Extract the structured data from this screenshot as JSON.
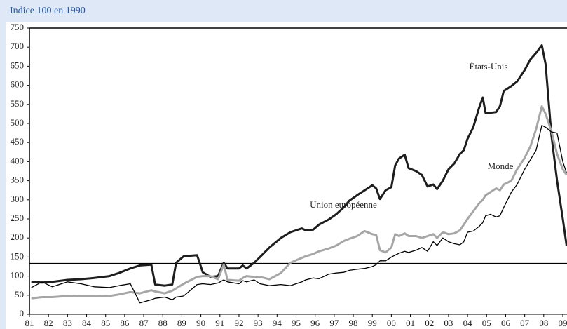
{
  "chart_data": {
    "type": "line",
    "title": "Indice 100 en 1990",
    "x": [
      1981.1,
      1981.66,
      1982.2,
      1983.0,
      1983.7,
      1984.4,
      1985.2,
      1985.7,
      1986.3,
      1986.8,
      1987.4,
      1987.6,
      1988.1,
      1988.5,
      1988.7,
      1989.1,
      1989.8,
      1990.1,
      1990.5,
      1990.9,
      1991.2,
      1991.4,
      1992.0,
      1992.2,
      1992.4,
      1992.8,
      1993.1,
      1993.6,
      1994.2,
      1994.7,
      1995.3,
      1995.5,
      1995.9,
      1996.2,
      1996.7,
      1997.1,
      1997.5,
      1997.8,
      1998.2,
      1998.6,
      1999.0,
      1999.2,
      1999.4,
      1999.7,
      2000.0,
      2000.2,
      2000.4,
      2000.7,
      2000.9,
      2001.3,
      2001.6,
      2001.9,
      2002.2,
      2002.4,
      2002.7,
      2003.0,
      2003.3,
      2003.6,
      2003.8,
      2004.0,
      2004.3,
      2004.6,
      2004.8,
      2004.95,
      2005.2,
      2005.5,
      2005.7,
      2005.9,
      2006.3,
      2006.6,
      2007.0,
      2007.3,
      2007.6,
      2007.9,
      2008.1,
      2008.4,
      2008.7,
      2009.0,
      2009.2
    ],
    "series": [
      {
        "name": "États-Unis",
        "color": "#1e1e1e",
        "line_width": 3,
        "values": [
          85,
          83,
          85,
          90,
          92,
          95,
          100,
          108,
          120,
          128,
          130,
          78,
          75,
          78,
          135,
          152,
          155,
          110,
          98,
          100,
          135,
          120,
          120,
          128,
          120,
          135,
          150,
          175,
          200,
          215,
          225,
          220,
          222,
          235,
          248,
          262,
          280,
          298,
          312,
          325,
          338,
          330,
          302,
          325,
          333,
          390,
          408,
          418,
          383,
          375,
          365,
          335,
          340,
          328,
          350,
          380,
          395,
          420,
          430,
          460,
          490,
          540,
          568,
          527,
          528,
          530,
          545,
          585,
          598,
          610,
          640,
          668,
          685,
          705,
          655,
          470,
          350,
          250,
          180
        ]
      },
      {
        "name": "Monde",
        "color": "#a6a6a6",
        "line_width": 3,
        "values": [
          42,
          45,
          45,
          48,
          47,
          47,
          48,
          52,
          58,
          55,
          63,
          60,
          55,
          62,
          68,
          80,
          98,
          100,
          100,
          92,
          130,
          90,
          88,
          95,
          100,
          98,
          98,
          92,
          108,
          135,
          148,
          152,
          158,
          165,
          172,
          180,
          192,
          198,
          205,
          218,
          210,
          208,
          168,
          162,
          175,
          210,
          205,
          212,
          205,
          205,
          200,
          205,
          210,
          200,
          215,
          210,
          212,
          220,
          235,
          250,
          270,
          290,
          300,
          312,
          320,
          330,
          325,
          340,
          350,
          380,
          410,
          440,
          485,
          545,
          525,
          480,
          420,
          380,
          365
        ]
      },
      {
        "name": "Union européenne",
        "color": "#000000",
        "line_width": 1.3,
        "values": [
          70,
          85,
          72,
          85,
          80,
          72,
          70,
          75,
          80,
          30,
          38,
          42,
          45,
          38,
          45,
          48,
          78,
          80,
          78,
          82,
          90,
          85,
          80,
          88,
          85,
          90,
          80,
          75,
          78,
          75,
          85,
          90,
          95,
          93,
          105,
          108,
          110,
          115,
          118,
          120,
          125,
          130,
          140,
          140,
          150,
          155,
          160,
          165,
          162,
          168,
          175,
          165,
          190,
          180,
          200,
          190,
          185,
          182,
          190,
          215,
          218,
          230,
          240,
          258,
          262,
          255,
          258,
          280,
          320,
          340,
          380,
          405,
          430,
          495,
          490,
          478,
          475,
          400,
          370
        ]
      }
    ],
    "reference_line": 133,
    "xlim": [
      1981,
      2009
    ],
    "xticks": [
      {
        "value": 1981,
        "label": "81"
      },
      {
        "value": 1982,
        "label": "82"
      },
      {
        "value": 1983,
        "label": "83"
      },
      {
        "value": 1984,
        "label": "84"
      },
      {
        "value": 1985,
        "label": "85"
      },
      {
        "value": 1986,
        "label": "86"
      },
      {
        "value": 1987,
        "label": "87"
      },
      {
        "value": 1988,
        "label": "88"
      },
      {
        "value": 1989,
        "label": "89"
      },
      {
        "value": 1990,
        "label": "90"
      },
      {
        "value": 1991,
        "label": "91"
      },
      {
        "value": 1992,
        "label": "92"
      },
      {
        "value": 1993,
        "label": "93"
      },
      {
        "value": 1994,
        "label": "94"
      },
      {
        "value": 1995,
        "label": "95"
      },
      {
        "value": 1996,
        "label": "96"
      },
      {
        "value": 1997,
        "label": "97"
      },
      {
        "value": 1998,
        "label": "98"
      },
      {
        "value": 1999,
        "label": "99"
      },
      {
        "value": 2000,
        "label": "00"
      },
      {
        "value": 2001,
        "label": "01"
      },
      {
        "value": 2002,
        "label": "02"
      },
      {
        "value": 2003,
        "label": "03"
      },
      {
        "value": 2004,
        "label": "04"
      },
      {
        "value": 2005,
        "label": "05"
      },
      {
        "value": 2006,
        "label": "06"
      },
      {
        "value": 2007,
        "label": "07"
      },
      {
        "value": 2008,
        "label": "08"
      },
      {
        "value": 2009,
        "label": "09"
      }
    ],
    "ylim": [
      0,
      750
    ],
    "yticks": [
      0,
      50,
      100,
      150,
      200,
      250,
      300,
      350,
      400,
      450,
      500,
      550,
      600,
      650,
      700,
      750
    ]
  }
}
